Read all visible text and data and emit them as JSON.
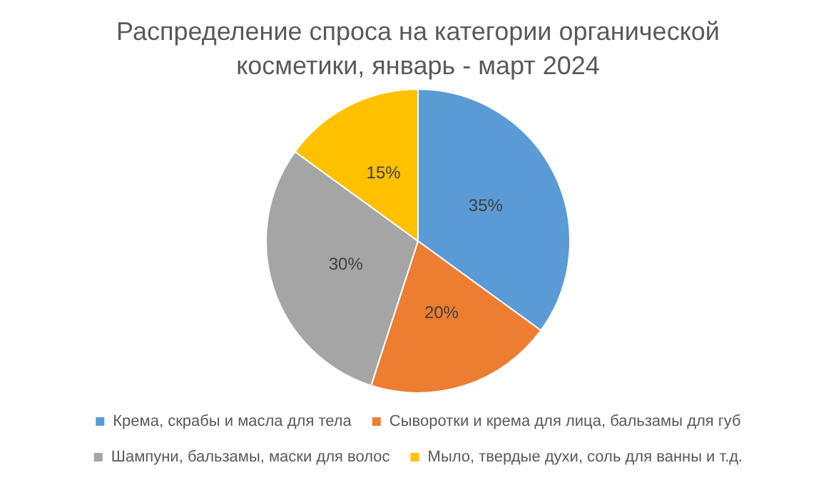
{
  "chart_data": {
    "type": "pie",
    "title": "Распределение спроса на категории органической косметики, январь - март 2024",
    "categories": [
      "Крема, скрабы и масла для тела",
      "Сыворотки и крема для лица, бальзамы для губ",
      "Шампуни, бальзамы, маски для волос",
      "Мыло, твердые духи, соль для ванны и т.д."
    ],
    "values": [
      35,
      20,
      30,
      15
    ],
    "value_labels": [
      "35%",
      "20%",
      "30%",
      "15%"
    ],
    "colors": [
      "#5b9bd5",
      "#ed7d31",
      "#a5a5a5",
      "#ffc000"
    ],
    "legend": "bottom"
  }
}
